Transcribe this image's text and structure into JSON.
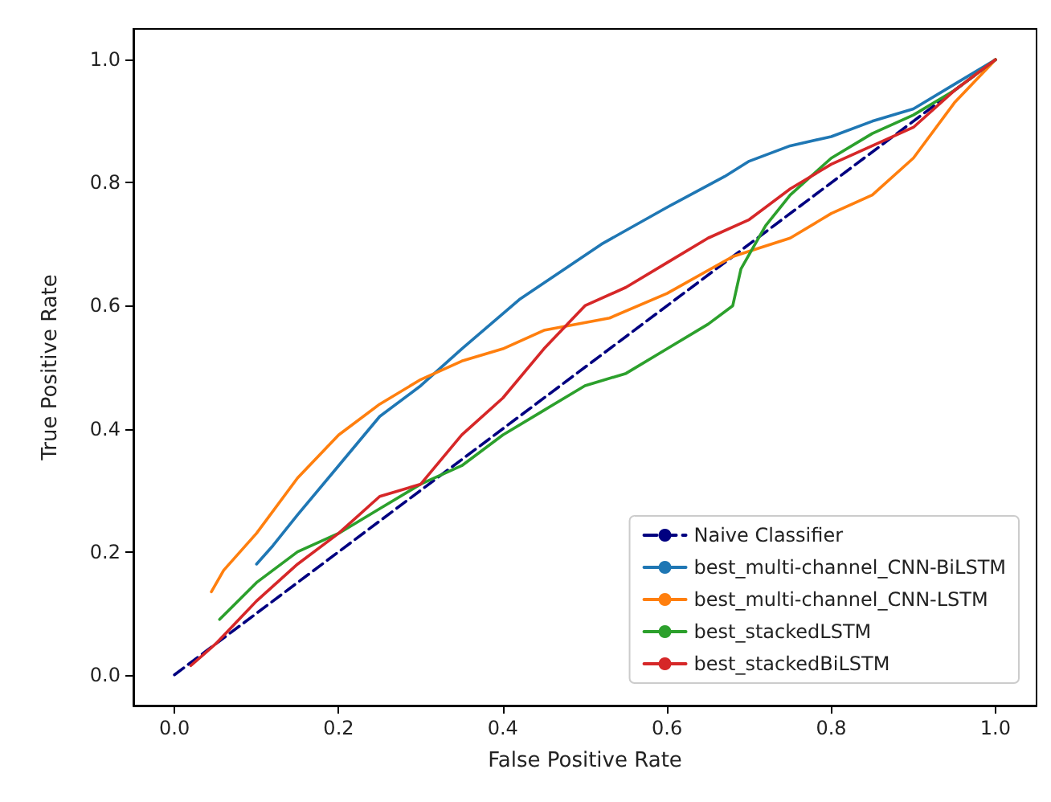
{
  "chart_data": {
    "type": "line",
    "xlabel": "False Positive Rate",
    "ylabel": "True Positive Rate",
    "xlim": [
      -0.05,
      1.05
    ],
    "ylim": [
      -0.05,
      1.05
    ],
    "xticks": [
      {
        "value": 0,
        "label": "0.0"
      },
      {
        "value": 0.2,
        "label": "0.2"
      },
      {
        "value": 0.4,
        "label": "0.4"
      },
      {
        "value": 0.6,
        "label": "0.6"
      },
      {
        "value": 0.8,
        "label": "0.8"
      },
      {
        "value": 1,
        "label": "1.0"
      }
    ],
    "yticks": [
      {
        "value": 0,
        "label": "0.0"
      },
      {
        "value": 0.2,
        "label": "0.2"
      },
      {
        "value": 0.4,
        "label": "0.4"
      },
      {
        "value": 0.6,
        "label": "0.6"
      },
      {
        "value": 0.8,
        "label": "0.8"
      },
      {
        "value": 1,
        "label": "1.0"
      }
    ],
    "grid": false,
    "legend": "bottom right",
    "marker": "none",
    "series": [
      {
        "name": "Naive Classifier",
        "color": "#000080",
        "line_style": "dashed",
        "x": [
          0,
          1
        ],
        "values": [
          0,
          1
        ]
      },
      {
        "name": "best_multi-channel_CNN-BiLSTM",
        "color": "#1f77b4",
        "x": [
          0.1,
          0.12,
          0.15,
          0.2,
          0.25,
          0.3,
          0.35,
          0.42,
          0.52,
          0.6,
          0.67,
          0.7,
          0.75,
          0.8,
          0.85,
          0.9,
          0.95,
          1
        ],
        "values": [
          0.18,
          0.21,
          0.26,
          0.34,
          0.42,
          0.47,
          0.53,
          0.61,
          0.7,
          0.76,
          0.81,
          0.835,
          0.86,
          0.875,
          0.9,
          0.92,
          0.96,
          1
        ]
      },
      {
        "name": "best_multi-channel_CNN-LSTM",
        "color": "#ff7f0e",
        "x": [
          0.045,
          0.06,
          0.1,
          0.15,
          0.2,
          0.25,
          0.3,
          0.35,
          0.4,
          0.45,
          0.53,
          0.6,
          0.68,
          0.75,
          0.8,
          0.85,
          0.9,
          0.95,
          1
        ],
        "values": [
          0.135,
          0.17,
          0.23,
          0.32,
          0.39,
          0.44,
          0.48,
          0.51,
          0.53,
          0.56,
          0.58,
          0.62,
          0.68,
          0.71,
          0.75,
          0.78,
          0.84,
          0.93,
          1
        ]
      },
      {
        "name": "best_stackedLSTM",
        "color": "#2ca02c",
        "x": [
          0.055,
          0.1,
          0.15,
          0.2,
          0.25,
          0.3,
          0.35,
          0.4,
          0.45,
          0.5,
          0.55,
          0.6,
          0.65,
          0.68,
          0.69,
          0.72,
          0.75,
          0.8,
          0.85,
          0.9,
          0.95,
          1
        ],
        "values": [
          0.09,
          0.15,
          0.2,
          0.23,
          0.27,
          0.31,
          0.34,
          0.39,
          0.43,
          0.47,
          0.49,
          0.53,
          0.57,
          0.6,
          0.66,
          0.73,
          0.78,
          0.84,
          0.88,
          0.91,
          0.95,
          1
        ]
      },
      {
        "name": "best_stackedBiLSTM",
        "color": "#d62728",
        "x": [
          0.02,
          0.05,
          0.1,
          0.15,
          0.2,
          0.25,
          0.3,
          0.35,
          0.4,
          0.45,
          0.5,
          0.55,
          0.6,
          0.65,
          0.7,
          0.75,
          0.8,
          0.85,
          0.9,
          0.95,
          1
        ],
        "values": [
          0.015,
          0.05,
          0.12,
          0.18,
          0.23,
          0.29,
          0.31,
          0.39,
          0.45,
          0.53,
          0.6,
          0.63,
          0.67,
          0.71,
          0.74,
          0.79,
          0.83,
          0.86,
          0.89,
          0.95,
          1
        ]
      }
    ]
  }
}
